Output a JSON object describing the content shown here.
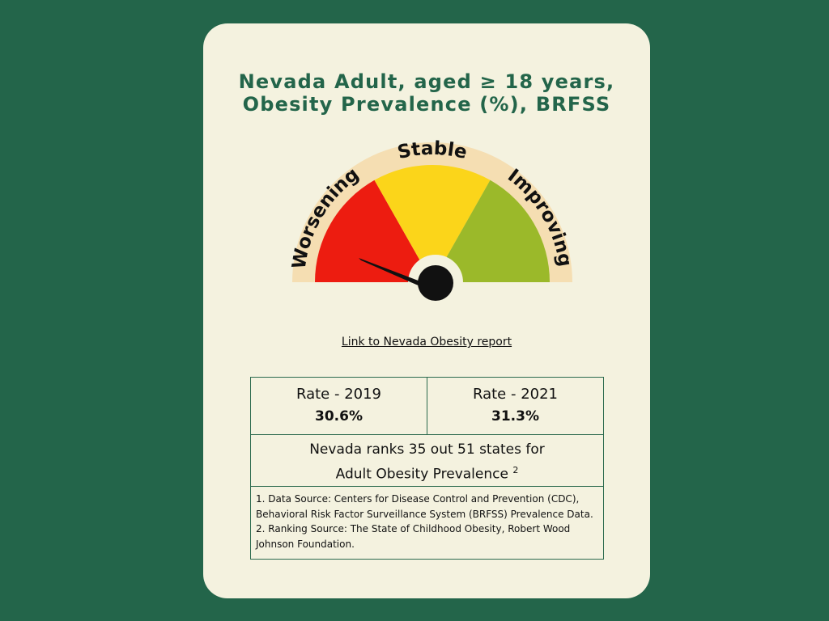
{
  "title": {
    "line1": "Nevada Adult, aged ≥ 18 years,",
    "line2": "Obesity Prevalence (%), BRFSS"
  },
  "gauge": {
    "labels": {
      "worsening": "Worsening",
      "stable": "Stable",
      "improving": "Improving"
    },
    "colors": {
      "worsening": "#ed1c10",
      "stable": "#fbd51a",
      "improving": "#9bb92a",
      "band": "#f5deb2",
      "needle": "#111111"
    },
    "status": "Worsening"
  },
  "report_link": {
    "label": "Link to Nevada Obesity report"
  },
  "rates": [
    {
      "label": "Rate - 2019",
      "value": "30.6%"
    },
    {
      "label": "Rate - 2021",
      "value": "31.3%"
    }
  ],
  "ranking": {
    "line1": "Nevada ranks 35 out 51 states for",
    "line2": "Adult Obesity Prevalence",
    "footnote": "2"
  },
  "sources": [
    "1. Data Source: Centers for Disease Control and Prevention (CDC), Behavioral Risk Factor Surveillance System (BRFSS) Prevalence Data.",
    "2. Ranking Source: The State of Childhood Obesity, Robert Wood Johnson Foundation."
  ]
}
